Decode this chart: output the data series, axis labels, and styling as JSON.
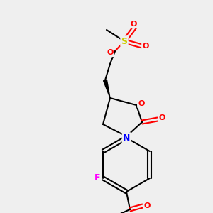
{
  "bg_color": "#efefef",
  "bond_color": "black",
  "bond_lw": 1.5,
  "atom_colors": {
    "O": "#ff0000",
    "N": "#0000ff",
    "S": "#cccc00",
    "F": "#ff00ff",
    "C": "black"
  },
  "font_size": 8,
  "fig_size": [
    3.0,
    3.0
  ],
  "dpi": 100
}
